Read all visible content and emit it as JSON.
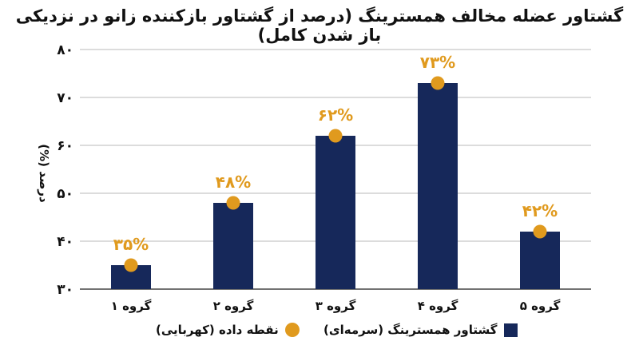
{
  "chart_data": {
    "type": "bar",
    "title": "گشتاور عضله مخالف همسترینگ (درصد از گشتاور بازکننده زانو در نزدیکی باز شدن کامل)",
    "ylabel": "درصد (%)",
    "xlabel": "",
    "ylim": [
      30,
      80
    ],
    "yticks": [
      "۳۰",
      "۴۰",
      "۵۰",
      "۶۰",
      "۷۰",
      "۸۰"
    ],
    "ytick_values": [
      30,
      40,
      50,
      60,
      70,
      80
    ],
    "categories": [
      "گروه ۱",
      "گروه ۲",
      "گروه ۳",
      "گروه ۴",
      "گروه ۵"
    ],
    "series": [
      {
        "name": "گشتاور همسترینگ (سرمه‌ای)",
        "type": "bar",
        "color": "#16285a",
        "values": [
          35,
          48,
          62,
          73,
          42
        ]
      },
      {
        "name": "نقطه داده (کهربایی)",
        "type": "point",
        "color": "#e09a1e",
        "values": [
          35,
          48,
          62,
          73,
          42
        ]
      }
    ],
    "data_labels": [
      "۳۵%",
      "۴۸%",
      "۶۲%",
      "۷۳%",
      "۴۲%"
    ],
    "grid": true,
    "legend_position": "bottom"
  },
  "legend": {
    "bar_label": "گشتاور همسترینگ (سرمه‌ای)",
    "point_label": "نقطه داده (کهربایی)"
  }
}
